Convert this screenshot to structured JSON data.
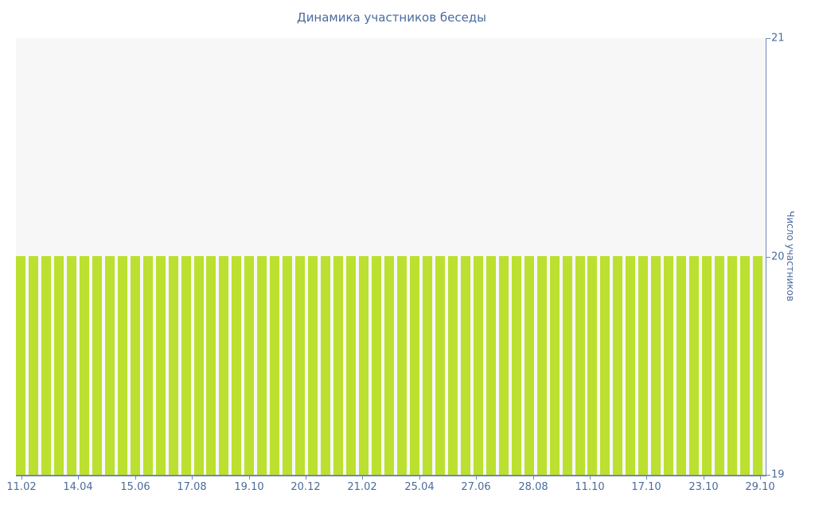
{
  "chart": {
    "title": "Динамика участников беседы",
    "colors": {
      "bar": "#bce02f",
      "plot_background": "#f7f7f7",
      "axis_line": "#6f86ba",
      "text": "#4a6b9c",
      "page_background": "#ffffff"
    }
  },
  "chart_data": {
    "type": "bar",
    "title": "Динамика участников беседы",
    "xlabel": "",
    "ylabel": "Число участников",
    "ylim": [
      19,
      21
    ],
    "yticks": [
      19,
      20,
      21
    ],
    "grid": false,
    "legend": false,
    "y_axis_position": "right",
    "x_tick_labels": [
      "11.02",
      "14.04",
      "15.06",
      "17.08",
      "19.10",
      "20.12",
      "21.02",
      "25.04",
      "27.06",
      "28.08",
      "11.10",
      "17.10",
      "23.10",
      "29.10"
    ],
    "bar_count": 59,
    "uniform_value": 20,
    "values": [
      20,
      20,
      20,
      20,
      20,
      20,
      20,
      20,
      20,
      20,
      20,
      20,
      20,
      20,
      20,
      20,
      20,
      20,
      20,
      20,
      20,
      20,
      20,
      20,
      20,
      20,
      20,
      20,
      20,
      20,
      20,
      20,
      20,
      20,
      20,
      20,
      20,
      20,
      20,
      20,
      20,
      20,
      20,
      20,
      20,
      20,
      20,
      20,
      20,
      20,
      20,
      20,
      20,
      20,
      20,
      20,
      20,
      20,
      20
    ]
  }
}
